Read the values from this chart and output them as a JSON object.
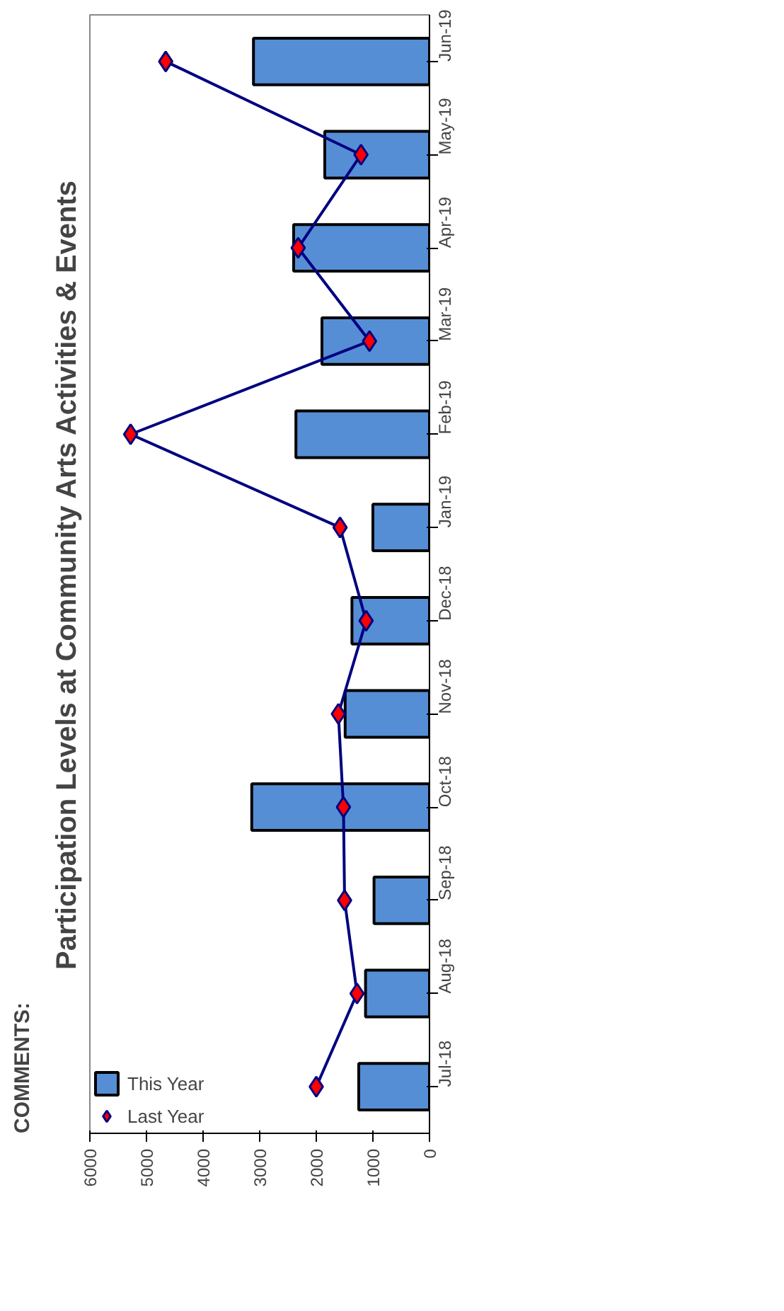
{
  "chart_data": {
    "type": "bar",
    "orientation": "horizontal",
    "title": "Participation Levels at Community Arts Activities & Events",
    "categories": [
      "Jun-19",
      "May-19",
      "Apr-19",
      "Mar-19",
      "Feb-19",
      "Jan-19",
      "Dec-18",
      "Nov-18",
      "Oct-18",
      "Sep-18",
      "Aug-18",
      "Jul-18"
    ],
    "series": [
      {
        "name": "This Year",
        "color": "#558ed5",
        "values": [
          3110,
          1850,
          2400,
          1900,
          2360,
          1000,
          1370,
          1490,
          3140,
          980,
          1130,
          1250
        ]
      },
      {
        "name": "Last Year",
        "type": "line",
        "color": "#000080",
        "marker": "diamond",
        "values": [
          4660,
          1210,
          2320,
          1060,
          5280,
          1580,
          1120,
          1610,
          1520,
          1500,
          1280,
          2000
        ]
      }
    ],
    "xlim": [
      6000,
      0
    ],
    "xticks": [
      0,
      1000,
      2000,
      3000,
      4000,
      5000,
      6000
    ],
    "grid": false,
    "legend": "bottom left",
    "annotations": [
      "COMMENTS:"
    ]
  }
}
